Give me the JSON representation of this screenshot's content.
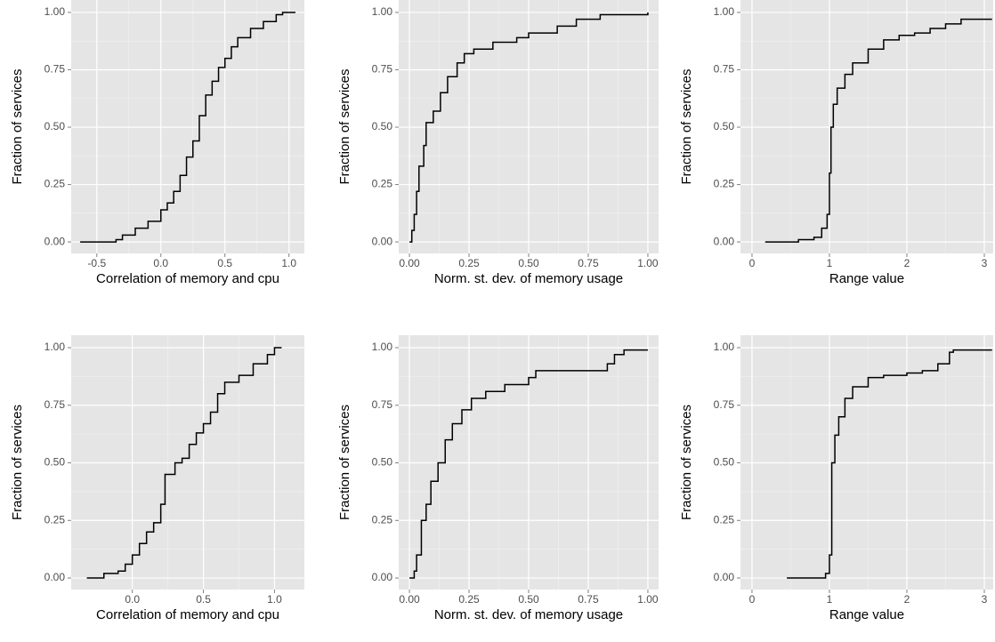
{
  "chart_data": [
    {
      "type": "step",
      "x_label": "Correlation of memory and cpu",
      "y_label": "Fraction of services",
      "color": "#000000",
      "grid": true,
      "minor_grid": true,
      "xlim": [
        -0.7,
        1.12
      ],
      "ylim": [
        -0.05,
        1.054
      ],
      "xticks": [
        -0.5,
        {
          "value": 0,
          "label": "0.0"
        },
        0.5,
        {
          "value": 1,
          "label": "1.0"
        }
      ],
      "yticks": [
        {
          "value": 0,
          "label": "0.00"
        },
        0.25,
        {
          "value": 0.5,
          "label": "0.50"
        },
        0.75,
        {
          "value": 1,
          "label": "1.00"
        }
      ],
      "x": [
        -0.63,
        -0.35,
        -0.3,
        -0.2,
        -0.1,
        0.0,
        0.05,
        0.1,
        0.15,
        0.2,
        0.25,
        0.3,
        0.35,
        0.4,
        0.45,
        0.5,
        0.55,
        0.6,
        0.7,
        0.8,
        0.9,
        0.95,
        1.05
      ],
      "y": [
        0,
        0.01,
        0.03,
        0.06,
        0.09,
        0.14,
        0.17,
        0.22,
        0.29,
        0.37,
        0.44,
        0.55,
        0.64,
        0.7,
        0.76,
        0.8,
        0.85,
        0.89,
        0.93,
        0.96,
        0.99,
        1.0,
        1.0
      ]
    },
    {
      "type": "step",
      "x_label": "Norm. st. dev. of memory usage",
      "y_label": "Fraction of services",
      "color": "#000000",
      "grid": true,
      "minor_grid": true,
      "xlim": [
        -0.045,
        1.045
      ],
      "ylim": [
        -0.05,
        1.054
      ],
      "xticks": [
        {
          "value": 0,
          "label": "0.00"
        },
        0.25,
        {
          "value": 0.5,
          "label": "0.50"
        },
        0.75,
        {
          "value": 1,
          "label": "1.00"
        }
      ],
      "yticks": [
        {
          "value": 0,
          "label": "0.00"
        },
        0.25,
        {
          "value": 0.5,
          "label": "0.50"
        },
        0.75,
        {
          "value": 1,
          "label": "1.00"
        }
      ],
      "x": [
        0,
        0.01,
        0.02,
        0.03,
        0.04,
        0.06,
        0.07,
        0.1,
        0.13,
        0.16,
        0.2,
        0.23,
        0.27,
        0.35,
        0.45,
        0.5,
        0.6,
        0.62,
        0.7,
        0.8,
        1.0
      ],
      "y": [
        0,
        0.05,
        0.12,
        0.22,
        0.33,
        0.42,
        0.52,
        0.57,
        0.65,
        0.72,
        0.78,
        0.82,
        0.84,
        0.87,
        0.89,
        0.91,
        0.91,
        0.94,
        0.97,
        0.99,
        1.0
      ]
    },
    {
      "type": "step",
      "x_label": "Range value",
      "y_label": "Fraction of services",
      "color": "#000000",
      "grid": true,
      "minor_grid": true,
      "xlim": [
        -0.149,
        3.115
      ],
      "ylim": [
        -0.05,
        1.054
      ],
      "xticks": [
        0,
        1,
        2,
        3
      ],
      "yticks": [
        {
          "value": 0,
          "label": "0.00"
        },
        0.25,
        {
          "value": 0.5,
          "label": "0.50"
        },
        0.75,
        {
          "value": 1,
          "label": "1.00"
        }
      ],
      "x": [
        0.17,
        0.6,
        0.8,
        0.9,
        0.97,
        1.0,
        1.02,
        1.05,
        1.1,
        1.2,
        1.3,
        1.5,
        1.7,
        1.9,
        2.1,
        2.3,
        2.5,
        2.7,
        3.1
      ],
      "y": [
        0,
        0.01,
        0.02,
        0.06,
        0.12,
        0.3,
        0.5,
        0.6,
        0.67,
        0.73,
        0.78,
        0.84,
        0.88,
        0.9,
        0.91,
        0.93,
        0.95,
        0.97,
        0.97
      ]
    },
    {
      "type": "step",
      "x_label": "Correlation of memory and cpu",
      "y_label": "Fraction of services",
      "color": "#000000",
      "grid": true,
      "minor_grid": true,
      "xlim": [
        -0.43,
        1.21
      ],
      "ylim": [
        -0.05,
        1.054
      ],
      "xticks": [
        {
          "value": 0,
          "label": "0.0"
        },
        0.5,
        {
          "value": 1,
          "label": "1.0"
        }
      ],
      "yticks": [
        {
          "value": 0,
          "label": "0.00"
        },
        0.25,
        {
          "value": 0.5,
          "label": "0.50"
        },
        0.75,
        {
          "value": 1,
          "label": "1.00"
        }
      ],
      "x": [
        -0.32,
        -0.2,
        -0.1,
        -0.05,
        0.0,
        0.05,
        0.1,
        0.15,
        0.2,
        0.23,
        0.3,
        0.35,
        0.4,
        0.45,
        0.5,
        0.55,
        0.6,
        0.65,
        0.75,
        0.85,
        0.95,
        1.0,
        1.05
      ],
      "y": [
        0,
        0.02,
        0.03,
        0.06,
        0.1,
        0.15,
        0.2,
        0.24,
        0.32,
        0.45,
        0.5,
        0.52,
        0.58,
        0.63,
        0.67,
        0.72,
        0.8,
        0.85,
        0.88,
        0.93,
        0.97,
        1.0,
        1.0
      ]
    },
    {
      "type": "step",
      "x_label": "Norm. st. dev. of memory usage",
      "y_label": "Fraction of services",
      "color": "#000000",
      "grid": true,
      "minor_grid": true,
      "xlim": [
        -0.045,
        1.045
      ],
      "ylim": [
        -0.05,
        1.054
      ],
      "xticks": [
        {
          "value": 0,
          "label": "0.00"
        },
        0.25,
        {
          "value": 0.5,
          "label": "0.50"
        },
        0.75,
        {
          "value": 1,
          "label": "1.00"
        }
      ],
      "yticks": [
        {
          "value": 0,
          "label": "0.00"
        },
        0.25,
        {
          "value": 0.5,
          "label": "0.50"
        },
        0.75,
        {
          "value": 1,
          "label": "1.00"
        }
      ],
      "x": [
        0,
        0.02,
        0.03,
        0.05,
        0.07,
        0.09,
        0.12,
        0.15,
        0.18,
        0.22,
        0.26,
        0.32,
        0.4,
        0.5,
        0.53,
        0.8,
        0.83,
        0.86,
        0.9,
        1.0
      ],
      "y": [
        0,
        0.03,
        0.1,
        0.25,
        0.32,
        0.42,
        0.5,
        0.6,
        0.67,
        0.73,
        0.78,
        0.81,
        0.84,
        0.87,
        0.9,
        0.9,
        0.93,
        0.97,
        0.99,
        0.99
      ]
    },
    {
      "type": "step",
      "x_label": "Range value",
      "y_label": "Fraction of services",
      "color": "#000000",
      "grid": true,
      "minor_grid": true,
      "xlim": [
        -0.149,
        3.115
      ],
      "ylim": [
        -0.05,
        1.054
      ],
      "xticks": [
        0,
        1,
        2,
        3
      ],
      "yticks": [
        {
          "value": 0,
          "label": "0.00"
        },
        0.25,
        {
          "value": 0.5,
          "label": "0.50"
        },
        0.75,
        {
          "value": 1,
          "label": "1.00"
        }
      ],
      "x": [
        0.45,
        0.85,
        0.95,
        1.0,
        1.03,
        1.07,
        1.12,
        1.2,
        1.3,
        1.5,
        1.7,
        2.0,
        2.2,
        2.4,
        2.55,
        2.6,
        3.1
      ],
      "y": [
        0,
        0,
        0.02,
        0.1,
        0.5,
        0.62,
        0.7,
        0.78,
        0.83,
        0.87,
        0.88,
        0.89,
        0.9,
        0.93,
        0.98,
        0.99,
        0.99
      ]
    }
  ]
}
